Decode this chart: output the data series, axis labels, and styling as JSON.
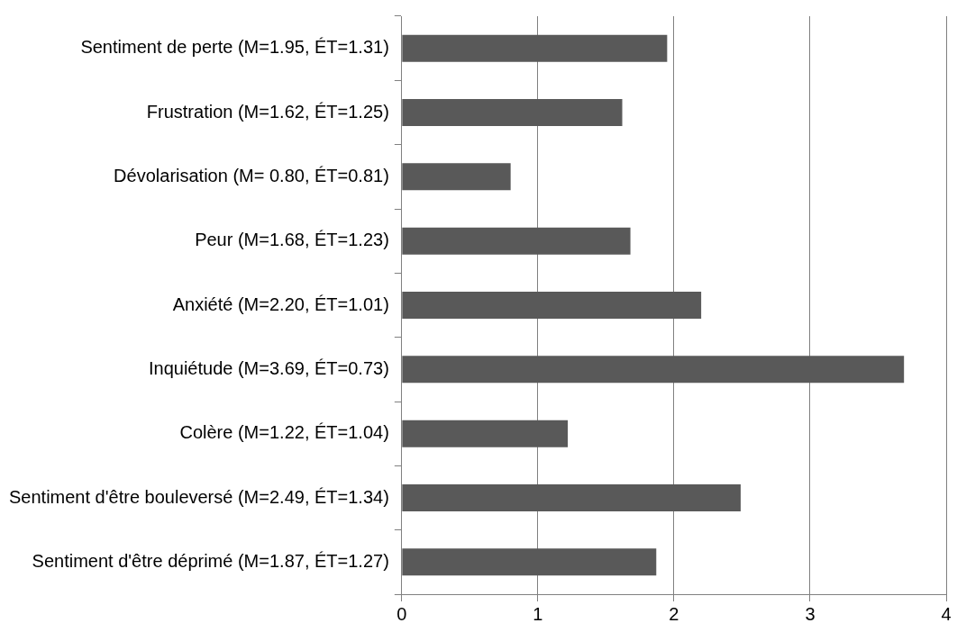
{
  "chart_data": {
    "type": "bar",
    "orientation": "horizontal",
    "categories": [
      "Sentiment de perte (M=1.95, ÉT=1.31)",
      "Frustration (M=1.62, ÉT=1.25)",
      "Dévolarisation (M= 0.80, ÉT=0.81)",
      "Peur (M=1.68, ÉT=1.23)",
      "Anxiété (M=2.20, ÉT=1.01)",
      "Inquiétude (M=3.69, ÉT=0.73)",
      "Colère (M=1.22, ÉT=1.04)",
      "Sentiment d'être bouleversé (M=2.49, ÉT=1.34)",
      "Sentiment d'être déprimé (M=1.87, ÉT=1.27)"
    ],
    "values": [
      1.95,
      1.62,
      0.8,
      1.68,
      2.2,
      3.69,
      1.22,
      2.49,
      1.87
    ],
    "color": "#595959",
    "xlim": [
      0,
      4
    ],
    "xticks": [
      0,
      1,
      2,
      3,
      4
    ],
    "grid": "x",
    "legend": false
  }
}
